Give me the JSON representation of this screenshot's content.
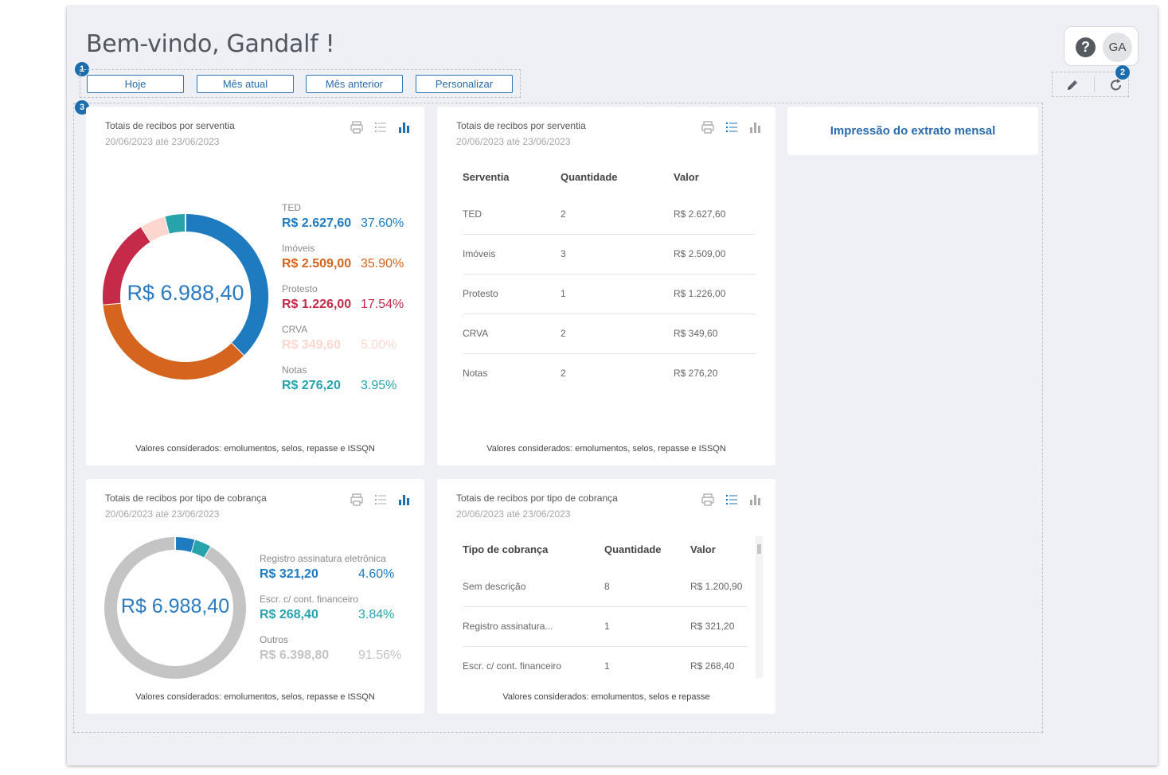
{
  "header": {
    "welcome": "Bem-vindo, Gandalf !"
  },
  "badges": {
    "one": "1",
    "two": "2",
    "three": "3"
  },
  "period_buttons": [
    "Hoje",
    "Mês atual",
    "Mês anterior",
    "Personalizar"
  ],
  "user": {
    "help_glyph": "?",
    "initials": "GA"
  },
  "colors": {
    "accent": "#2a6bad",
    "ted": "#1f7bbf",
    "imoveis": "#d4641e",
    "protesto": "#c52a48",
    "crva": "#fdd7cf",
    "notas": "#26a3ab",
    "outros": "#c4c4c4"
  },
  "card1": {
    "title": "Totais de recibos por serventia",
    "date": "20/06/2023 até 23/06/2023",
    "total": "R$ 6.988,40",
    "footer": "Valores considerados: emolumentos, selos, repasse e ISSQN",
    "legend": [
      {
        "name": "TED",
        "value": "R$ 2.627,60",
        "pct": "37.60%",
        "color": "#1f7bbf"
      },
      {
        "name": "Imóveis",
        "value": "R$ 2.509,00",
        "pct": "35.90%",
        "color": "#d4641e"
      },
      {
        "name": "Protesto",
        "value": "R$ 1.226,00",
        "pct": "17.54%",
        "color": "#c52a48"
      },
      {
        "name": "CRVA",
        "value": "R$ 349,60",
        "pct": "5.00%",
        "color": "#fdd7cf"
      },
      {
        "name": "Notas",
        "value": "R$ 276,20",
        "pct": "3.95%",
        "color": "#26a3ab"
      }
    ]
  },
  "card2": {
    "title": "Totais de recibos por serventia",
    "date": "20/06/2023 até 23/06/2023",
    "footer": "Valores considerados: emolumentos, selos, repasse e ISSQN",
    "headers": [
      "Serventia",
      "Quantidade",
      "Valor"
    ],
    "rows": [
      [
        "TED",
        "2",
        "R$ 2.627,60"
      ],
      [
        "Imóveis",
        "3",
        "R$ 2.509,00"
      ],
      [
        "Protesto",
        "1",
        "R$ 1.226,00"
      ],
      [
        "CRVA",
        "2",
        "R$ 349,60"
      ],
      [
        "Notas",
        "2",
        "R$ 276,20"
      ]
    ]
  },
  "card3": {
    "title": "Totais de recibos por tipo de cobrança",
    "date": "20/06/2023 até 23/06/2023",
    "total": "R$ 6.988,40",
    "footer": "Valores considerados: emolumentos, selos, repasse e ISSQN",
    "legend": [
      {
        "name": "Registro assinatura eletrônica",
        "value": "R$ 321,20",
        "pct": "4.60%",
        "color": "#1f7bbf"
      },
      {
        "name": "Escr. c/ cont. financeiro",
        "value": "R$ 268,40",
        "pct": "3.84%",
        "color": "#26a3ab"
      },
      {
        "name": "Outros",
        "value": "R$ 6.398,80",
        "pct": "91.56%",
        "color": "#c4c4c4"
      }
    ]
  },
  "card4": {
    "title": "Totais de recibos por tipo de cobrança",
    "date": "20/06/2023 até 23/06/2023",
    "footer": "Valores considerados: emolumentos, selos e repasse",
    "headers": [
      "Tipo de cobrança",
      "Quantidade",
      "Valor"
    ],
    "rows": [
      [
        "Sem descrição",
        "8",
        "R$ 1.200,90"
      ],
      [
        "Registro assinatura...",
        "1",
        "R$ 321,20"
      ],
      [
        "Escr. c/ cont. financeiro",
        "1",
        "R$ 268,40"
      ]
    ]
  },
  "side_card": {
    "label": "Impressão do extrato mensal"
  },
  "chart_data": [
    {
      "type": "pie",
      "title": "Totais de recibos por serventia",
      "categories": [
        "TED",
        "Imóveis",
        "Protesto",
        "CRVA",
        "Notas"
      ],
      "values": [
        2627.6,
        2509.0,
        1226.0,
        349.6,
        276.2
      ],
      "percentages": [
        37.6,
        35.9,
        17.54,
        5.0,
        3.95
      ],
      "colors": [
        "#1f7bbf",
        "#d4641e",
        "#c52a48",
        "#fdd7cf",
        "#26a3ab"
      ],
      "center_label": "R$ 6.988,40"
    },
    {
      "type": "pie",
      "title": "Totais de recibos por tipo de cobrança",
      "categories": [
        "Registro assinatura eletrônica",
        "Escr. c/ cont. financeiro",
        "Outros"
      ],
      "values": [
        321.2,
        268.4,
        6398.8
      ],
      "percentages": [
        4.6,
        3.84,
        91.56
      ],
      "colors": [
        "#1f7bbf",
        "#26a3ab",
        "#c4c4c4"
      ],
      "center_label": "R$ 6.988,40"
    }
  ]
}
